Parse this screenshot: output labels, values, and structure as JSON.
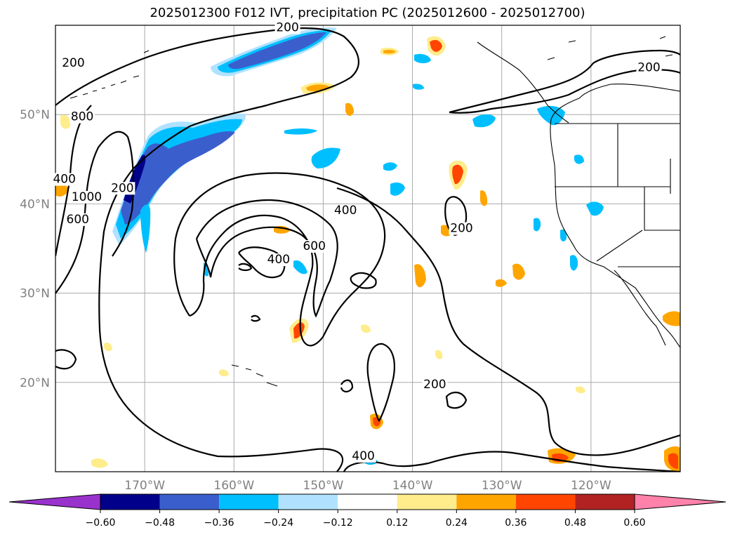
{
  "title": "2025012300 F012 IVT, precipitation PC (2025012600 - 2025012700)",
  "axes": {
    "lon_range": [
      -180,
      -110
    ],
    "lat_range": [
      10,
      60
    ],
    "lon_ticks": [
      {
        "value": -170,
        "label": "170°W"
      },
      {
        "value": -160,
        "label": "160°W"
      },
      {
        "value": -150,
        "label": "150°W"
      },
      {
        "value": -140,
        "label": "140°W"
      },
      {
        "value": -130,
        "label": "130°W"
      },
      {
        "value": -120,
        "label": "120°W"
      }
    ],
    "lat_ticks": [
      {
        "value": 20,
        "label": "20°N"
      },
      {
        "value": 30,
        "label": "30°N"
      },
      {
        "value": 40,
        "label": "40°N"
      },
      {
        "value": 50,
        "label": "50°N"
      }
    ],
    "grid": true
  },
  "ivt_contour_labels": [
    {
      "text": "200",
      "lon": -178,
      "lat": 55.5
    },
    {
      "text": "200",
      "lon": -154,
      "lat": 59.5
    },
    {
      "text": "800",
      "lon": -177,
      "lat": 49.5
    },
    {
      "text": "200",
      "lon": -172.5,
      "lat": 41.5
    },
    {
      "text": "400",
      "lon": -179,
      "lat": 42.5
    },
    {
      "text": "1000",
      "lon": -176.5,
      "lat": 40.5
    },
    {
      "text": "600",
      "lon": -177.5,
      "lat": 38
    },
    {
      "text": "400",
      "lon": -147.5,
      "lat": 39
    },
    {
      "text": "600",
      "lon": -151,
      "lat": 35
    },
    {
      "text": "400",
      "lon": -155,
      "lat": 33.5
    },
    {
      "text": "200",
      "lon": -134.5,
      "lat": 37
    },
    {
      "text": "200",
      "lon": -137.5,
      "lat": 19.5
    },
    {
      "text": "400",
      "lon": -145.5,
      "lat": 11.5
    },
    {
      "text": "200",
      "lon": -113.5,
      "lat": 55
    }
  ],
  "colorbar": {
    "extend": "both",
    "ticks": [
      "−0.60",
      "−0.48",
      "−0.36",
      "−0.24",
      "−0.12",
      "0.12",
      "0.24",
      "0.36",
      "0.48",
      "0.60"
    ],
    "colors": [
      "#9932cc",
      "#00008b",
      "#3a5fcd",
      "#00bfff",
      "#b0e2ff",
      "#ffffff",
      "#ffec8b",
      "#ffa500",
      "#ff4500",
      "#b22222",
      "#ff82ab"
    ]
  }
}
